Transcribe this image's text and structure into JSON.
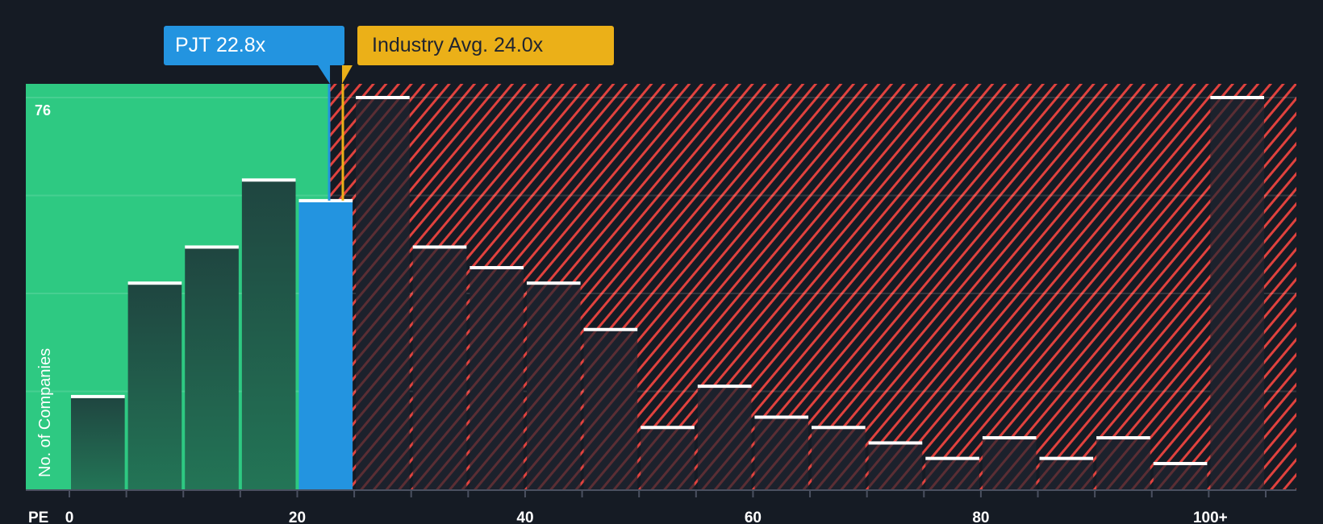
{
  "chart_data": {
    "type": "bar",
    "title": "",
    "xlabel": "PE",
    "ylabel": "No. of Companies",
    "ylim": [
      0,
      76
    ],
    "y_max_label": "76",
    "x_tick_labels": [
      "0",
      "20",
      "40",
      "60",
      "80",
      "100+"
    ],
    "bin_width": 5,
    "categories": [
      "0-5",
      "5-10",
      "10-15",
      "15-20",
      "20-25",
      "25-30",
      "30-35",
      "35-40",
      "40-45",
      "45-50",
      "50-55",
      "55-60",
      "60-65",
      "65-70",
      "70-75",
      "75-80",
      "80-85",
      "85-90",
      "90-95",
      "95-100",
      "100+"
    ],
    "values": [
      18,
      40,
      47,
      60,
      56,
      76,
      47,
      43,
      40,
      31,
      12,
      20,
      14,
      12,
      9,
      6,
      10,
      6,
      10,
      5,
      76
    ],
    "highlight_bin_index": 4,
    "grid": true,
    "annotations": {
      "company": {
        "label": "PJT 22.8x",
        "value": 22.8,
        "color": "#2394e0"
      },
      "industry": {
        "label": "Industry Avg. 24.0x",
        "value": 24.0,
        "color": "#ebb018"
      }
    },
    "colors": {
      "background": "#151b24",
      "undervalued_zone": "#2ec982",
      "overvalued_hatch": "#e0423e",
      "bar_fill_green": "#1f4a3f",
      "bar_fill_dark": "#1c212c",
      "highlight_bar": "#2394e0",
      "bar_cap": "#ffffff",
      "axis": "#4a5060",
      "text": "#ffffff"
    }
  },
  "labels": {
    "pjt_callout": "PJT 22.8x",
    "industry_callout": "Industry Avg. 24.0x",
    "y_axis_title": "No. of Companies",
    "y_max": "76",
    "x_axis_title": "PE"
  }
}
